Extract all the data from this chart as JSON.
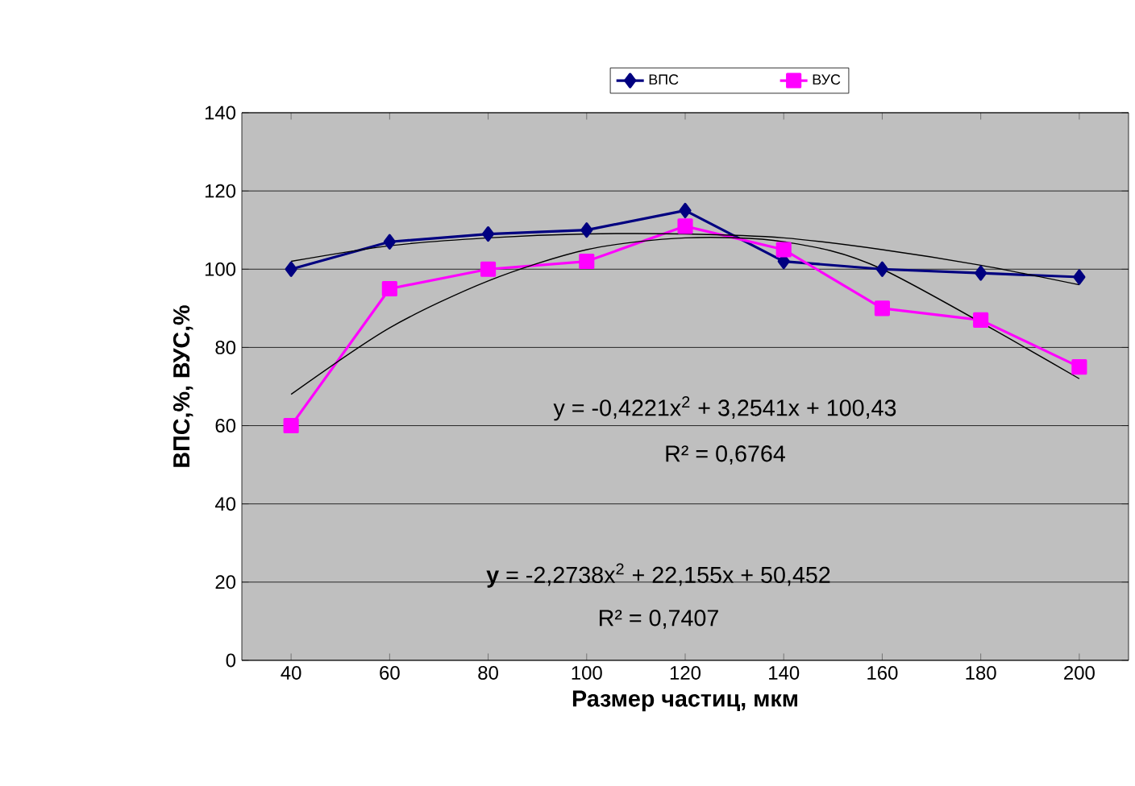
{
  "chart_data": {
    "type": "line",
    "xlabel": "Размер частиц, мкм",
    "ylabel": "ВПС,%, ВУС,%",
    "categories": [
      "40",
      "60",
      "80",
      "100",
      "120",
      "140",
      "160",
      "180",
      "200"
    ],
    "series": [
      {
        "name": "ВПС",
        "color": "#000080",
        "marker": "diamond",
        "values": [
          100,
          107,
          109,
          110,
          115,
          102,
          100,
          99,
          98
        ]
      },
      {
        "name": "ВУС",
        "color": "#ff00ff",
        "marker": "square",
        "values": [
          60,
          95,
          100,
          102,
          111,
          105,
          90,
          87,
          75
        ]
      },
      {
        "color": "#000000",
        "marker": "none",
        "values": [
          102,
          106,
          108,
          109,
          109,
          108,
          105,
          101,
          96
        ]
      },
      {
        "color": "#000000",
        "marker": "none",
        "values": [
          68,
          85,
          97,
          105,
          108,
          107,
          100,
          null,
          72
        ]
      }
    ],
    "ylim": [
      0,
      140
    ],
    "yticks": [
      0,
      20,
      40,
      60,
      80,
      100,
      120,
      140
    ],
    "grid": "y",
    "legend": "top",
    "annotations": [
      "y = -0,4221x$^{2}$ + 3,2541x + 100,43",
      "R² = 0,6764",
      "**y** = -2,2738x$^{2}$ + 22,155x + 50,452",
      "R² = 0,7407"
    ]
  }
}
